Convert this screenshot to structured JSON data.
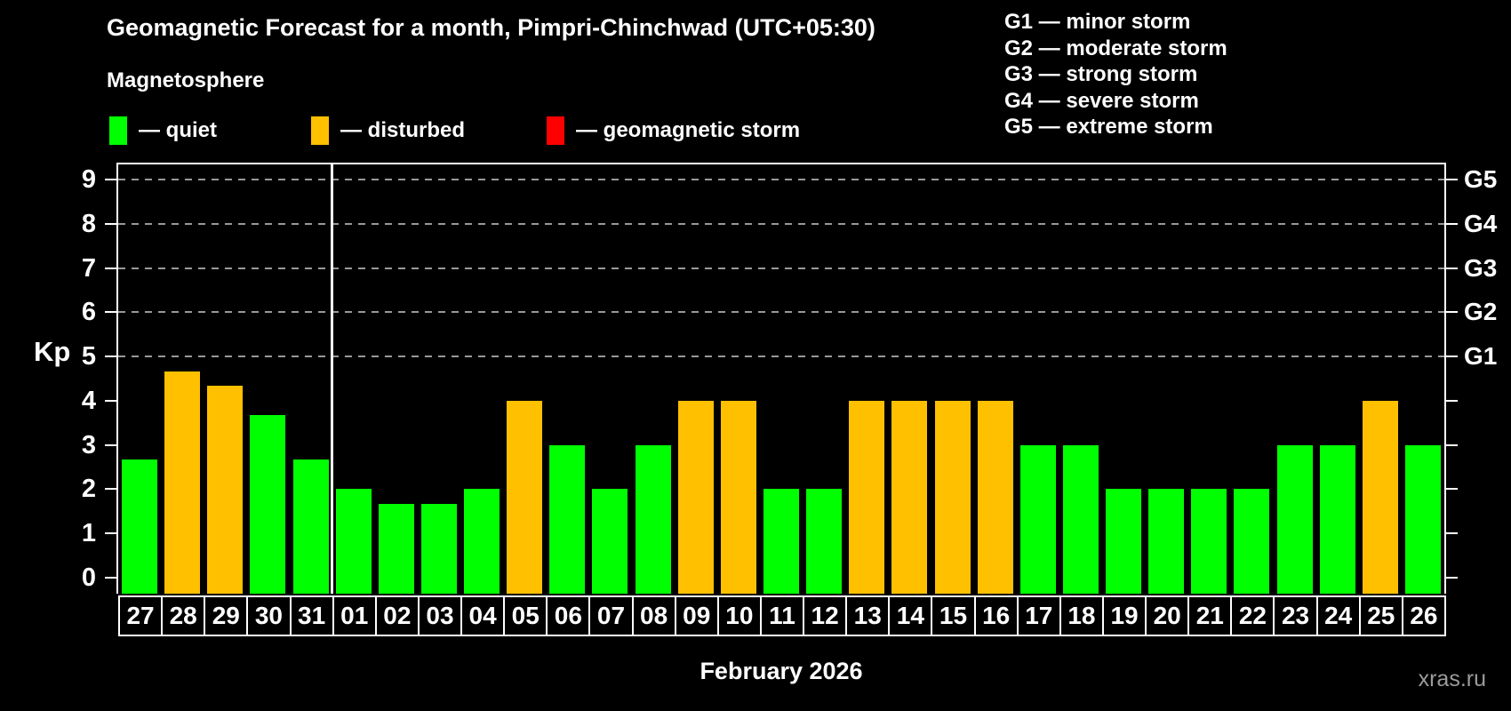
{
  "title": "Geomagnetic Forecast for a month, Pimpri-Chinchwad (UTC+05:30)",
  "subtitle": "Magnetosphere",
  "watermark": "xras.ru",
  "g_scale_legend": [
    "G1 — minor storm",
    "G2 — moderate storm",
    "G3 — strong storm",
    "G4 — severe storm",
    "G5 — extreme storm"
  ],
  "legend": [
    {
      "name": "quiet",
      "color": "#00ff00",
      "label": "— quiet"
    },
    {
      "name": "disturbed",
      "color": "#ffc000",
      "label": "— disturbed"
    },
    {
      "name": "storm",
      "color": "#ff0000",
      "label": "— geomagnetic storm"
    }
  ],
  "chart_data": {
    "type": "bar",
    "title": "Geomagnetic Forecast for a month, Pimpri-Chinchwad (UTC+05:30)",
    "xlabel": "February 2026",
    "ylabel": "Kp",
    "ylim": [
      0,
      9.4
    ],
    "yticks": [
      0,
      1,
      2,
      3,
      4,
      5,
      6,
      7,
      8,
      9
    ],
    "grid_on_kp": [
      5,
      6,
      7,
      8,
      9
    ],
    "right_axis_labels": [
      {
        "kp": 5,
        "label": "G1"
      },
      {
        "kp": 6,
        "label": "G2"
      },
      {
        "kp": 7,
        "label": "G3"
      },
      {
        "kp": 8,
        "label": "G4"
      },
      {
        "kp": 9,
        "label": "G5"
      }
    ],
    "legend_position": "top-left",
    "month_separator_after_category": "31",
    "categories": [
      "27",
      "28",
      "29",
      "30",
      "31",
      "01",
      "02",
      "03",
      "04",
      "05",
      "06",
      "07",
      "08",
      "09",
      "10",
      "11",
      "12",
      "13",
      "14",
      "15",
      "16",
      "17",
      "18",
      "19",
      "20",
      "21",
      "22",
      "23",
      "24",
      "25",
      "26"
    ],
    "values": [
      2.67,
      4.67,
      4.33,
      3.67,
      2.67,
      2,
      1.67,
      1.67,
      2,
      4,
      3,
      2,
      3,
      4,
      4,
      2,
      2,
      4,
      4,
      4,
      4,
      3,
      3,
      2,
      2,
      2,
      2,
      3,
      3,
      4,
      3
    ],
    "states": [
      "quiet",
      "disturbed",
      "disturbed",
      "quiet",
      "quiet",
      "quiet",
      "quiet",
      "quiet",
      "quiet",
      "disturbed",
      "quiet",
      "quiet",
      "quiet",
      "disturbed",
      "disturbed",
      "quiet",
      "quiet",
      "disturbed",
      "disturbed",
      "disturbed",
      "disturbed",
      "quiet",
      "quiet",
      "quiet",
      "quiet",
      "quiet",
      "quiet",
      "quiet",
      "quiet",
      "disturbed",
      "quiet"
    ],
    "state_colors": {
      "quiet": "#00ff00",
      "disturbed": "#ffc000",
      "storm": "#ff0000"
    }
  }
}
